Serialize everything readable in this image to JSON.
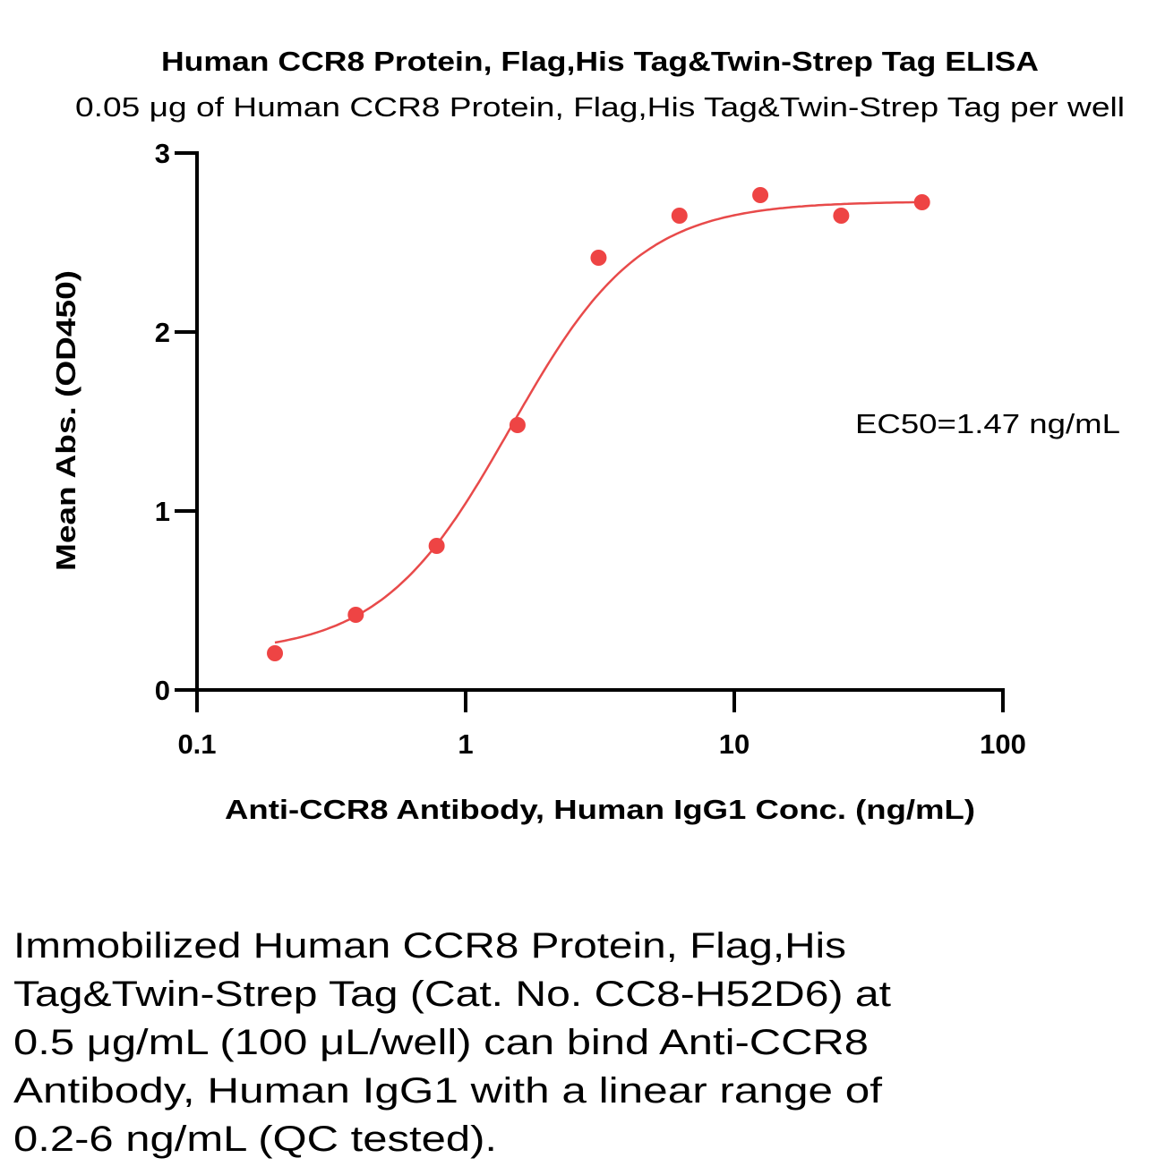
{
  "chart_data": {
    "type": "scatter",
    "title": "Human CCR8 Protein, Flag,His Tag&Twin-Strep Tag ELISA",
    "subtitle": "0.05 μg of Human CCR8 Protein, Flag,His Tag&Twin-Strep Tag per well",
    "xlabel": "Anti-CCR8 Antibody, Human IgG1 Conc. (ng/mL)",
    "ylabel": "Mean Abs. (OD450)",
    "xscale": "log",
    "xlim": [
      0.1,
      100
    ],
    "ylim": [
      0,
      3
    ],
    "xticks": [
      0.1,
      1,
      10,
      100
    ],
    "xtick_labels": [
      "0.1",
      "1",
      "10",
      "100"
    ],
    "yticks": [
      0,
      1,
      2,
      3
    ],
    "ytick_labels": [
      "0",
      "1",
      "2",
      "3"
    ],
    "grid": false,
    "series": [
      {
        "name": "Anti-CCR8 Antibody, Human IgG1",
        "color": "#ee4444",
        "x": [
          0.195,
          0.39,
          0.78,
          1.56,
          3.125,
          6.25,
          12.5,
          25,
          50
        ],
        "y": [
          0.205,
          0.42,
          0.805,
          1.48,
          2.415,
          2.65,
          2.765,
          2.65,
          2.725
        ]
      }
    ],
    "fit": {
      "model": "4PL",
      "bottom": 0.2,
      "top": 2.73,
      "ec50": 1.47,
      "hill": 1.8,
      "x_range": [
        0.195,
        50
      ],
      "color": "#e84a4a"
    },
    "annotation": "EC50=1.47 ng/mL"
  },
  "caption": [
    "Immobilized Human CCR8 Protein, Flag,His",
    "Tag&Twin-Strep Tag (Cat. No. CC8-H52D6) at",
    "0.5 μg/mL (100 μL/well) can bind Anti-CCR8",
    "Antibody, Human IgG1 with a linear range of",
    "0.2-6 ng/mL (QC tested)."
  ]
}
